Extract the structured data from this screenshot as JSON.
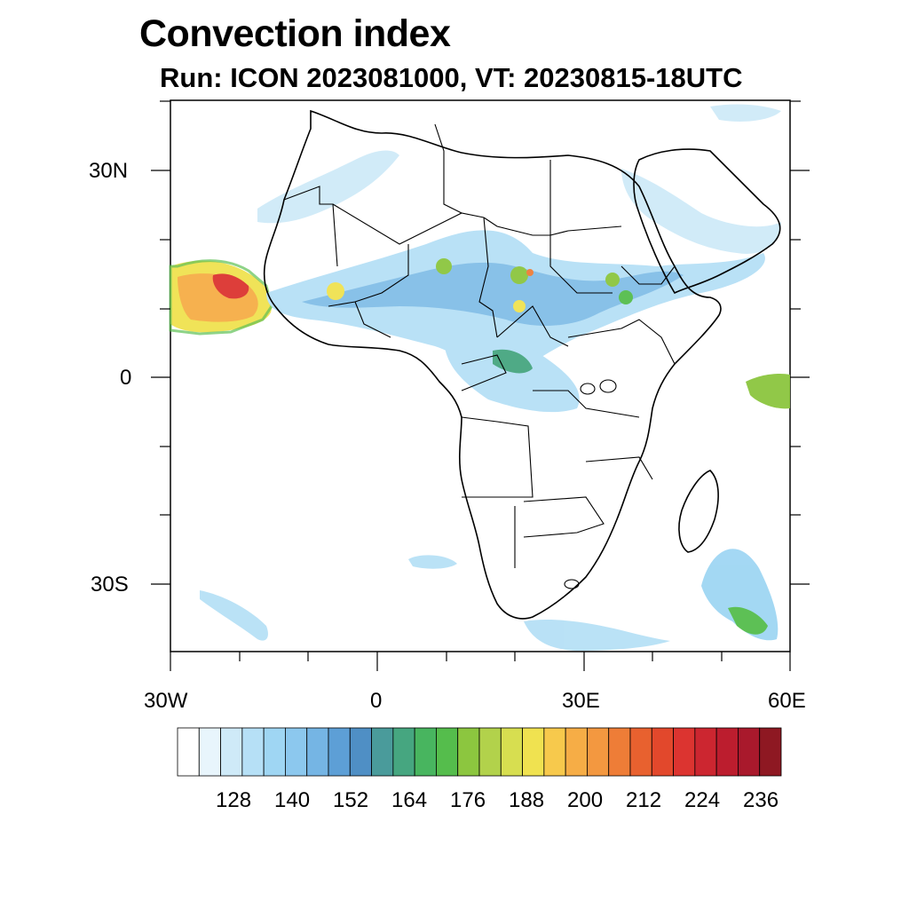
{
  "title": "Convection index",
  "subtitle": "Run: ICON 2023081000,  VT: 20230815-18UTC",
  "axes": {
    "lat_labels": [
      "30N",
      "0",
      "30S"
    ],
    "lon_labels": [
      "30W",
      "0",
      "30E",
      "60E"
    ]
  },
  "colorbar": {
    "labels": [
      "128",
      "140",
      "152",
      "164",
      "176",
      "188",
      "200",
      "212",
      "224",
      "236"
    ],
    "colors": [
      "#ffffff",
      "#e8f5fc",
      "#cfeaf8",
      "#b6e0f6",
      "#9fd6f3",
      "#8cc8ee",
      "#75b5e4",
      "#5d9fd6",
      "#4f8fc5",
      "#4a9b9b",
      "#46a680",
      "#48b55f",
      "#55bd4c",
      "#8cc63f",
      "#b2d24b",
      "#d7de50",
      "#f0e250",
      "#f7c94c",
      "#f6ad46",
      "#f39840",
      "#ee7d37",
      "#e8612f",
      "#e2482c",
      "#dc3430",
      "#cc2630",
      "#bc1d2e",
      "#a9192c",
      "#8e1822"
    ]
  }
}
